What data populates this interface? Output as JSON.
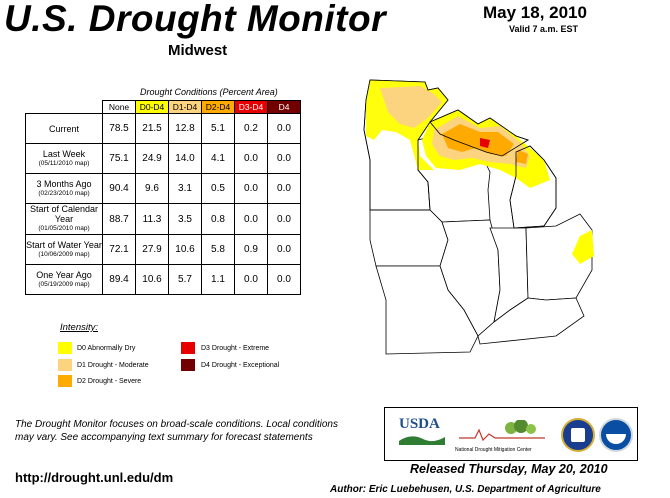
{
  "header": {
    "title": "U.S. Drought Monitor",
    "region": "Midwest",
    "date": "May 18, 2010",
    "valid": "Valid 7 a.m. EST"
  },
  "table": {
    "caption": "Drought Conditions (Percent Area)",
    "columns": [
      {
        "label": "None",
        "color": "#ffffff"
      },
      {
        "label": "D0-D4",
        "color": "#ffff00"
      },
      {
        "label": "D1-D4",
        "color": "#fcd37f"
      },
      {
        "label": "D2-D4",
        "color": "#ffaa00"
      },
      {
        "label": "D3-D4",
        "color": "#e60000"
      },
      {
        "label": "D4",
        "color": "#730000"
      }
    ],
    "rows": [
      {
        "label": "Current",
        "sub": "",
        "values": [
          "78.5",
          "21.5",
          "12.8",
          "5.1",
          "0.2",
          "0.0"
        ]
      },
      {
        "label": "Last Week",
        "sub": "(05/11/2010 map)",
        "values": [
          "75.1",
          "24.9",
          "14.0",
          "4.1",
          "0.0",
          "0.0"
        ]
      },
      {
        "label": "3 Months Ago",
        "sub": "(02/23/2010 map)",
        "values": [
          "90.4",
          "9.6",
          "3.1",
          "0.5",
          "0.0",
          "0.0"
        ]
      },
      {
        "label": "Start of Calendar Year",
        "sub": "(01/05/2010 map)",
        "values": [
          "88.7",
          "11.3",
          "3.5",
          "0.8",
          "0.0",
          "0.0"
        ]
      },
      {
        "label": "Start of Water Year",
        "sub": "(10/06/2009 map)",
        "values": [
          "72.1",
          "27.9",
          "10.6",
          "5.8",
          "0.9",
          "0.0"
        ]
      },
      {
        "label": "One Year Ago",
        "sub": "(05/19/2009 map)",
        "values": [
          "89.4",
          "10.6",
          "5.7",
          "1.1",
          "0.0",
          "0.0"
        ]
      }
    ]
  },
  "legend": {
    "title": "Intensity:",
    "items": [
      {
        "label": "D0 Abnormally Dry",
        "color": "#ffff00"
      },
      {
        "label": "D1 Drought - Moderate",
        "color": "#fcd37f"
      },
      {
        "label": "D2 Drought - Severe",
        "color": "#ffaa00"
      },
      {
        "label": "D3 Drought - Extreme",
        "color": "#e60000"
      },
      {
        "label": "D4 Drought - Exceptional",
        "color": "#730000"
      }
    ]
  },
  "footer": {
    "note": "The Drought Monitor focuses on broad-scale conditions. Local conditions may vary. See accompanying text summary for forecast statements",
    "url": "http://drought.unl.edu/dm",
    "released": "Released Thursday, May 20, 2010",
    "author": "Author: Eric Luebehusen, U.S. Department of Agriculture"
  },
  "logos": {
    "usda": "USDA",
    "ndmc": "National Drought Mitigation Center"
  }
}
